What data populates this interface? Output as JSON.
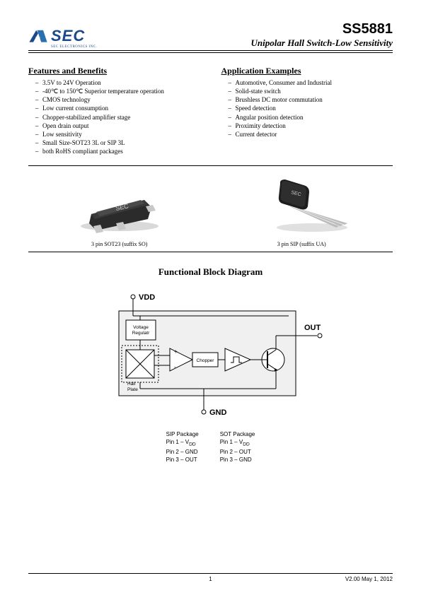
{
  "header": {
    "logo_text": "SEC",
    "logo_sub": "SEC ELECTRONICS INC.",
    "part_number": "SS5881",
    "subtitle": "Unipolar  Hall  Switch-Low  Sensitivity",
    "logo_colors": {
      "primary": "#1a4a8a",
      "accent": "#2a6fb0"
    }
  },
  "features": {
    "heading": "Features and Benefits",
    "items": [
      "3.5V to 24V Operation",
      "-40℃ to 150℃ Superior temperature operation",
      "CMOS technology",
      "Low current consumption",
      "Chopper-stabilized amplifier stage",
      "Open drain output",
      "Low sensitivity",
      "Small Size-SOT23 3L or SIP 3L",
      "both RoHS compliant packages"
    ]
  },
  "applications": {
    "heading": "Application Examples",
    "items": [
      "Automotive, Consumer and Industrial",
      "Solid-state switch",
      "Brushless DC motor commutation",
      "Speed detection",
      "Angular position detection",
      "Proximity detection",
      "Current detector"
    ]
  },
  "packages": {
    "left": {
      "caption": "3 pin SOT23 (suffix SO)",
      "marking": "SEC",
      "body_color": "#2b2b2b",
      "lead_color": "#c8c8c8"
    },
    "right": {
      "caption": "3 pin SIP (suffix UA)",
      "marking": "SEC",
      "body_color": "#1e1e1e",
      "lead_color": "#bcbcbc"
    }
  },
  "diagram": {
    "title": "Functional Block Diagram",
    "labels": {
      "vdd": "VDD",
      "gnd": "GND",
      "out": "OUT",
      "vreg": "Voltage Regulatr",
      "hall": "Hall Plate",
      "chopper": "Chopper"
    },
    "colors": {
      "stroke": "#000000",
      "fill": "#f0f0f0",
      "hatch": "#000000"
    }
  },
  "pinout": {
    "sip": {
      "name": "SIP Package",
      "rows": [
        "Pin 1 – V",
        "Pin 2 – GND",
        "Pin 3 – OUT"
      ],
      "sub0": "DD"
    },
    "sot": {
      "name": "SOT Package",
      "rows": [
        "Pin 1 – V",
        "Pin 2 – OUT",
        "Pin 3 – GND"
      ],
      "sub0": "DD"
    }
  },
  "footer": {
    "page": "1",
    "version": "V2.00   May 1, 2012"
  }
}
